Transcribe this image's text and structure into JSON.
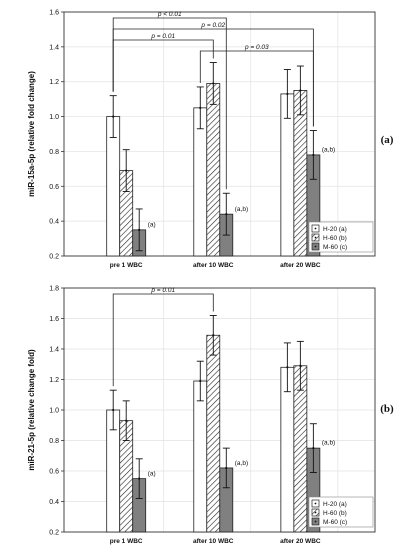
{
  "chart_data": [
    {
      "type": "bar",
      "panel_label": "(a)",
      "ylabel": "miR-15a-5p (relative fold change)",
      "ylim": [
        0.2,
        1.6
      ],
      "yticks": [
        "0.2",
        "0.4",
        "0.6",
        "0.8",
        "1.0",
        "1.2",
        "1.4",
        "1.6"
      ],
      "categories": [
        "pre 1 WBC",
        "after 10 WBC",
        "after 20 WBC"
      ],
      "series": [
        {
          "name": "H-20 (a)",
          "values": [
            1.0,
            1.05,
            1.13
          ],
          "err": [
            0.12,
            0.12,
            0.14
          ],
          "color": "#ffffff",
          "pattern": "none"
        },
        {
          "name": "H-60 (b)",
          "values": [
            0.69,
            1.19,
            1.15
          ],
          "err": [
            0.12,
            0.12,
            0.14
          ],
          "color": "#ffffff",
          "pattern": "hatch"
        },
        {
          "name": "M-60 (c)",
          "values": [
            0.35,
            0.44,
            0.78
          ],
          "err": [
            0.12,
            0.12,
            0.14
          ],
          "color": "#808080",
          "pattern": "none"
        }
      ],
      "annotations": [
        {
          "series": 2,
          "category": 0,
          "text": "(a)"
        },
        {
          "series": 2,
          "category": 1,
          "text": "(a,b)"
        },
        {
          "series": 2,
          "category": 2,
          "text": "(a,b)"
        }
      ],
      "brackets": [
        {
          "text": "p < 0.01",
          "from": [
            0,
            0
          ],
          "to": [
            2,
            1
          ]
        },
        {
          "text": "p = 0.02",
          "from": [
            0,
            0
          ],
          "to": [
            2,
            2
          ]
        },
        {
          "text": "p = 0.01",
          "from": [
            0,
            0
          ],
          "to": [
            1,
            1
          ]
        },
        {
          "text": "p = 0.03",
          "from": [
            0,
            1
          ],
          "to": [
            2,
            2
          ]
        }
      ],
      "legend": [
        "H-20 (a)",
        "H-60 (b)",
        "M-60 (c)"
      ]
    },
    {
      "type": "bar",
      "panel_label": "(b)",
      "ylabel": "miR-21-5p (relative change fold)",
      "ylim": [
        0.2,
        1.8
      ],
      "yticks": [
        "0.2",
        "0.4",
        "0.6",
        "0.8",
        "1.0",
        "1.2",
        "1.4",
        "1.6",
        "1.8"
      ],
      "categories": [
        "pre 1 WBC",
        "after 10 WBC",
        "after 20 WBC"
      ],
      "series": [
        {
          "name": "H-20 (a)",
          "values": [
            1.0,
            1.19,
            1.28
          ],
          "err": [
            0.13,
            0.13,
            0.16
          ],
          "color": "#ffffff",
          "pattern": "none"
        },
        {
          "name": "H-60 (b)",
          "values": [
            0.93,
            1.49,
            1.29
          ],
          "err": [
            0.13,
            0.13,
            0.16
          ],
          "color": "#ffffff",
          "pattern": "hatch"
        },
        {
          "name": "M-60 (c)",
          "values": [
            0.55,
            0.62,
            0.75
          ],
          "err": [
            0.13,
            0.13,
            0.16
          ],
          "color": "#808080",
          "pattern": "none"
        }
      ],
      "annotations": [
        {
          "series": 2,
          "category": 0,
          "text": "(a)"
        },
        {
          "series": 2,
          "category": 1,
          "text": "(a,b)"
        },
        {
          "series": 2,
          "category": 2,
          "text": "(a,b)"
        }
      ],
      "brackets": [
        {
          "text": "p = 0.01",
          "from": [
            0,
            0
          ],
          "to": [
            1,
            1
          ]
        }
      ],
      "legend": [
        "H-20 (a)",
        "H-60 (b)",
        "M-60 (c)"
      ]
    }
  ]
}
